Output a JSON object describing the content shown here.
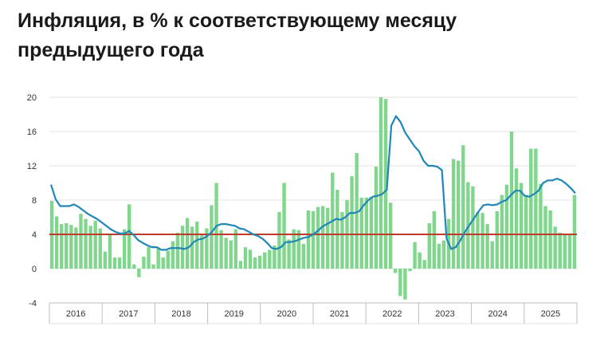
{
  "chart_data": {
    "type": "bar",
    "title": "Инфляция, в % к соответствующему месяцу предыдущего года",
    "ylim": [
      -4,
      20
    ],
    "yticks": [
      -4,
      0,
      4,
      8,
      12,
      16,
      20
    ],
    "year_labels": [
      "2016",
      "2017",
      "2018",
      "2019",
      "2020",
      "2021",
      "2022",
      "2023",
      "2024",
      "2025"
    ],
    "threshold": 4,
    "colors": {
      "bars": "#7fd68c",
      "line": "#1f87b8",
      "threshold": "#c0392b"
    },
    "series": [
      {
        "type": "bar",
        "values": [
          7.9,
          6.1,
          5.2,
          5.3,
          5.1,
          4.8,
          6.4,
          5.8,
          5.0,
          5.6,
          4.7,
          2.0,
          4.0,
          1.3,
          1.3,
          4.6,
          7.5,
          0.5,
          -1.0,
          1.4,
          2.5,
          0.5,
          2.4,
          1.3,
          2.1,
          3.2,
          4.2,
          5.0,
          5.9,
          4.9,
          5.5,
          3.9,
          4.7,
          7.4,
          10.0,
          4.5,
          3.6,
          3.3,
          4.6,
          0.9,
          2.5,
          2.2,
          1.3,
          1.5,
          1.9,
          2.2,
          2.7,
          6.6,
          10.0,
          3.4,
          4.6,
          4.5,
          2.9,
          6.8,
          6.7,
          7.2,
          7.3,
          7.1,
          11.2,
          9.2,
          6.6,
          8.0,
          10.8,
          13.5,
          8.3,
          8.3,
          8.4,
          11.9,
          20.0,
          19.8,
          7.7,
          -0.5,
          -3.2,
          -3.6,
          -0.3,
          3.1,
          1.9,
          1.0,
          5.3,
          6.7,
          2.9,
          3.3,
          5.8,
          12.8,
          12.6,
          14.4,
          10.1,
          9.6,
          6.6,
          6.5,
          5.2,
          3.2,
          6.7,
          8.6,
          9.8,
          16.0,
          11.7,
          10.0,
          8.6,
          14.0,
          14.0,
          9.9,
          7.3,
          6.8,
          4.9,
          4.2,
          4.1,
          4.1,
          8.6
        ]
      },
      {
        "type": "line",
        "values": [
          9.8,
          8.1,
          7.3,
          7.3,
          7.3,
          7.5,
          7.2,
          6.8,
          6.4,
          6.1,
          5.8,
          5.4,
          5.0,
          4.6,
          4.3,
          4.1,
          4.1,
          4.4,
          3.9,
          3.3,
          3.0,
          2.7,
          2.5,
          2.5,
          2.2,
          2.2,
          2.4,
          2.4,
          2.4,
          2.3,
          2.5,
          3.1,
          3.4,
          3.5,
          3.8,
          4.3,
          5.0,
          5.2,
          5.2,
          5.1,
          5.0,
          4.7,
          4.6,
          4.3,
          4.0,
          3.8,
          3.5,
          3.0,
          2.4,
          2.3,
          2.5,
          3.1,
          3.1,
          3.2,
          3.4,
          3.6,
          3.7,
          4.0,
          4.4,
          4.9,
          5.2,
          5.5,
          5.8,
          5.7,
          6.0,
          6.5,
          6.5,
          6.7,
          7.4,
          8.0,
          8.4,
          8.5,
          8.7,
          9.2,
          16.7,
          17.8,
          17.1,
          15.9,
          15.1,
          14.3,
          13.7,
          12.6,
          12.0,
          12.0,
          11.9,
          11.5,
          3.5,
          2.3,
          2.5,
          3.3,
          4.3,
          5.1,
          5.9,
          6.7,
          7.4,
          7.5,
          7.4,
          7.5,
          7.8,
          8.0,
          8.6,
          9.1,
          9.1,
          8.5,
          8.4,
          8.7,
          9.1,
          10.0,
          10.3,
          10.3,
          10.5,
          10.3,
          9.9,
          9.4,
          8.8
        ]
      }
    ]
  }
}
